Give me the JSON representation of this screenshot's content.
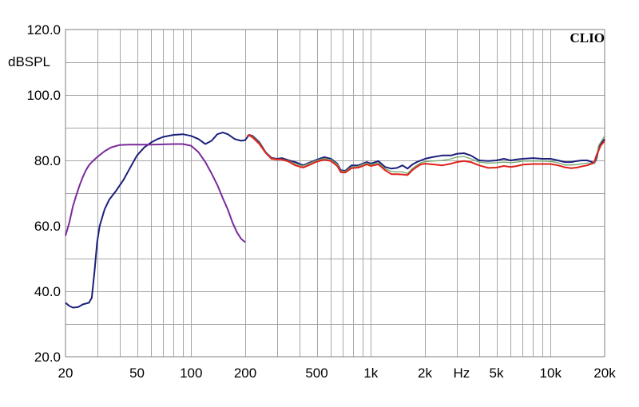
{
  "brand": "CLIO",
  "chart_data": {
    "type": "line",
    "title": "",
    "ylabel": "dBSPL",
    "xlabel": "Hz",
    "x_scale": "log",
    "xlim": [
      20,
      20000
    ],
    "ylim": [
      20,
      120
    ],
    "grid": true,
    "y_ticks": [
      {
        "value": 20,
        "label": "20.0"
      },
      {
        "value": 40,
        "label": "40.0"
      },
      {
        "value": 60,
        "label": "60.0"
      },
      {
        "value": 80,
        "label": "80.0"
      },
      {
        "value": 100,
        "label": "100.0"
      },
      {
        "value": 120,
        "label": "120.0"
      }
    ],
    "x_ticks": [
      {
        "value": 20,
        "label": "20"
      },
      {
        "value": 50,
        "label": "50"
      },
      {
        "value": 100,
        "label": "100"
      },
      {
        "value": 200,
        "label": "200"
      },
      {
        "value": 500,
        "label": "500"
      },
      {
        "value": 1000,
        "label": "1k"
      },
      {
        "value": 2000,
        "label": "2k"
      },
      {
        "value": 5000,
        "label": "5k"
      },
      {
        "value": 10000,
        "label": "10k"
      },
      {
        "value": 20000,
        "label": "20k"
      }
    ],
    "x_grid_minor": [
      30,
      40,
      60,
      70,
      80,
      90,
      300,
      400,
      600,
      700,
      800,
      900,
      3000,
      4000,
      6000,
      7000,
      8000,
      9000
    ],
    "series": [
      {
        "color": "#1b1f7a",
        "points": [
          [
            20,
            36.5
          ],
          [
            21,
            35.5
          ],
          [
            22,
            35.0
          ],
          [
            23.5,
            35.2
          ],
          [
            25,
            36.0
          ],
          [
            27,
            36.5
          ],
          [
            28,
            38
          ],
          [
            29,
            46
          ],
          [
            30,
            55
          ],
          [
            31,
            60
          ],
          [
            33,
            65
          ],
          [
            35,
            68
          ],
          [
            38,
            70.5
          ],
          [
            42,
            74
          ],
          [
            45,
            77
          ],
          [
            50,
            81.5
          ],
          [
            55,
            84
          ],
          [
            60,
            85.5
          ],
          [
            65,
            86.5
          ],
          [
            70,
            87.2
          ],
          [
            80,
            87.8
          ],
          [
            90,
            88.0
          ],
          [
            100,
            87.5
          ],
          [
            110,
            86.5
          ],
          [
            120,
            85.0
          ],
          [
            130,
            86.0
          ],
          [
            140,
            88.0
          ],
          [
            150,
            88.5
          ],
          [
            160,
            88.0
          ],
          [
            175,
            86.5
          ],
          [
            190,
            86.0
          ],
          [
            200,
            86.2
          ],
          [
            208,
            87.5
          ],
          [
            210,
            87.8
          ],
          [
            220,
            87.5
          ],
          [
            240,
            85.5
          ],
          [
            260,
            82.5
          ],
          [
            280,
            80.8
          ],
          [
            300,
            80.5
          ],
          [
            320,
            80.7
          ],
          [
            350,
            80.0
          ],
          [
            380,
            79.5
          ],
          [
            420,
            78.5
          ],
          [
            450,
            79.2
          ],
          [
            500,
            80.2
          ],
          [
            550,
            81.0
          ],
          [
            600,
            80.5
          ],
          [
            650,
            79.0
          ],
          [
            680,
            77.0
          ],
          [
            720,
            76.8
          ],
          [
            780,
            78.5
          ],
          [
            850,
            78.5
          ],
          [
            900,
            79.0
          ],
          [
            950,
            79.5
          ],
          [
            1000,
            79.0
          ],
          [
            1100,
            79.8
          ],
          [
            1200,
            78.0
          ],
          [
            1300,
            77.5
          ],
          [
            1400,
            77.7
          ],
          [
            1500,
            78.5
          ],
          [
            1600,
            77.5
          ],
          [
            1700,
            78.7
          ],
          [
            1800,
            79.5
          ],
          [
            1900,
            80.0
          ],
          [
            2000,
            80.5
          ],
          [
            2200,
            81.0
          ],
          [
            2500,
            81.5
          ],
          [
            2800,
            81.5
          ],
          [
            3000,
            82.0
          ],
          [
            3300,
            82.2
          ],
          [
            3600,
            81.5
          ],
          [
            4000,
            80.0
          ],
          [
            4500,
            79.8
          ],
          [
            5000,
            80.0
          ],
          [
            5500,
            80.5
          ],
          [
            6000,
            80.0
          ],
          [
            6500,
            80.3
          ],
          [
            7000,
            80.5
          ],
          [
            8000,
            80.7
          ],
          [
            9000,
            80.5
          ],
          [
            10000,
            80.5
          ],
          [
            11000,
            80.0
          ],
          [
            12000,
            79.5
          ],
          [
            13000,
            79.5
          ],
          [
            14000,
            79.8
          ],
          [
            15000,
            80.0
          ],
          [
            16000,
            80.0
          ],
          [
            17000,
            79.5
          ],
          [
            17500,
            79.2
          ],
          [
            18000,
            80.5
          ],
          [
            18500,
            83.5
          ],
          [
            19000,
            85.0
          ],
          [
            20000,
            86.5
          ]
        ]
      },
      {
        "color": "#7a2a9a",
        "points": [
          [
            20,
            57
          ],
          [
            21,
            61
          ],
          [
            22,
            66
          ],
          [
            23,
            69.5
          ],
          [
            24,
            72.5
          ],
          [
            25,
            75
          ],
          [
            26,
            77
          ],
          [
            27,
            78.5
          ],
          [
            28,
            79.5
          ],
          [
            30,
            81
          ],
          [
            33,
            82.8
          ],
          [
            36,
            84
          ],
          [
            40,
            84.7
          ],
          [
            45,
            84.8
          ],
          [
            50,
            84.8
          ],
          [
            60,
            84.8
          ],
          [
            70,
            84.9
          ],
          [
            80,
            85.0
          ],
          [
            90,
            85.0
          ],
          [
            100,
            84.5
          ],
          [
            110,
            82.5
          ],
          [
            120,
            79.5
          ],
          [
            130,
            76.0
          ],
          [
            140,
            72.5
          ],
          [
            150,
            68.5
          ],
          [
            160,
            65.0
          ],
          [
            170,
            61.0
          ],
          [
            180,
            58.0
          ],
          [
            190,
            56.0
          ],
          [
            200,
            55.0
          ]
        ]
      },
      {
        "color": "#6fa86a",
        "points": [
          [
            205,
            87.5
          ],
          [
            210,
            87.8
          ],
          [
            220,
            87.3
          ],
          [
            240,
            85.3
          ],
          [
            260,
            82.5
          ],
          [
            280,
            80.7
          ],
          [
            300,
            80.4
          ],
          [
            320,
            80.4
          ],
          [
            350,
            79.8
          ],
          [
            380,
            79.0
          ],
          [
            420,
            78.3
          ],
          [
            450,
            79.0
          ],
          [
            500,
            80.0
          ],
          [
            550,
            80.6
          ],
          [
            600,
            80.2
          ],
          [
            650,
            78.8
          ],
          [
            680,
            76.8
          ],
          [
            720,
            76.6
          ],
          [
            780,
            78.0
          ],
          [
            850,
            78.2
          ],
          [
            900,
            78.8
          ],
          [
            950,
            79.2
          ],
          [
            1000,
            78.7
          ],
          [
            1100,
            79.3
          ],
          [
            1200,
            77.5
          ],
          [
            1300,
            76.6
          ],
          [
            1400,
            76.5
          ],
          [
            1500,
            76.5
          ],
          [
            1600,
            76.0
          ],
          [
            1700,
            77.5
          ],
          [
            1800,
            78.5
          ],
          [
            1900,
            79.3
          ],
          [
            2000,
            79.6
          ],
          [
            2200,
            79.8
          ],
          [
            2500,
            80.0
          ],
          [
            2800,
            80.5
          ],
          [
            3000,
            81.0
          ],
          [
            3300,
            81.2
          ],
          [
            3600,
            80.5
          ],
          [
            4000,
            79.5
          ],
          [
            4500,
            79.2
          ],
          [
            5000,
            79.3
          ],
          [
            5500,
            79.5
          ],
          [
            6000,
            79.3
          ],
          [
            6500,
            79.5
          ],
          [
            7000,
            79.8
          ],
          [
            8000,
            79.8
          ],
          [
            9000,
            79.8
          ],
          [
            10000,
            79.7
          ],
          [
            11000,
            79.3
          ],
          [
            12000,
            78.6
          ],
          [
            13000,
            78.6
          ],
          [
            14000,
            78.7
          ],
          [
            15000,
            79.0
          ],
          [
            16000,
            79.2
          ],
          [
            17000,
            79.0
          ],
          [
            17500,
            79.0
          ],
          [
            18000,
            81.0
          ],
          [
            18500,
            84.5
          ],
          [
            19000,
            85.5
          ],
          [
            20000,
            87.5
          ]
        ]
      },
      {
        "color": "#e0201a",
        "points": [
          [
            205,
            87.5
          ],
          [
            210,
            87.7
          ],
          [
            220,
            87.0
          ],
          [
            240,
            85.0
          ],
          [
            260,
            82.3
          ],
          [
            280,
            80.5
          ],
          [
            300,
            80.3
          ],
          [
            320,
            80.3
          ],
          [
            350,
            79.6
          ],
          [
            380,
            78.5
          ],
          [
            420,
            77.8
          ],
          [
            450,
            78.5
          ],
          [
            500,
            79.6
          ],
          [
            550,
            80.2
          ],
          [
            600,
            79.8
          ],
          [
            650,
            78.3
          ],
          [
            680,
            76.4
          ],
          [
            720,
            76.3
          ],
          [
            780,
            77.6
          ],
          [
            850,
            77.8
          ],
          [
            900,
            78.3
          ],
          [
            950,
            78.8
          ],
          [
            1000,
            78.3
          ],
          [
            1100,
            78.8
          ],
          [
            1200,
            77.0
          ],
          [
            1300,
            75.8
          ],
          [
            1400,
            75.8
          ],
          [
            1500,
            75.7
          ],
          [
            1600,
            75.5
          ],
          [
            1700,
            77.0
          ],
          [
            1800,
            78.0
          ],
          [
            1900,
            78.8
          ],
          [
            2000,
            79.0
          ],
          [
            2200,
            78.8
          ],
          [
            2500,
            78.5
          ],
          [
            2800,
            79.0
          ],
          [
            3000,
            79.5
          ],
          [
            3300,
            79.8
          ],
          [
            3600,
            79.5
          ],
          [
            4000,
            78.5
          ],
          [
            4500,
            77.7
          ],
          [
            5000,
            77.8
          ],
          [
            5500,
            78.3
          ],
          [
            6000,
            78.0
          ],
          [
            6500,
            78.3
          ],
          [
            7000,
            78.7
          ],
          [
            8000,
            78.9
          ],
          [
            9000,
            78.9
          ],
          [
            10000,
            78.9
          ],
          [
            11000,
            78.5
          ],
          [
            12000,
            77.9
          ],
          [
            13000,
            77.6
          ],
          [
            14000,
            77.8
          ],
          [
            15000,
            78.2
          ],
          [
            16000,
            78.5
          ],
          [
            17000,
            79.0
          ],
          [
            17500,
            79.5
          ],
          [
            18000,
            81.5
          ],
          [
            18500,
            83.0
          ],
          [
            19000,
            84.5
          ],
          [
            20000,
            86.0
          ]
        ]
      }
    ]
  }
}
